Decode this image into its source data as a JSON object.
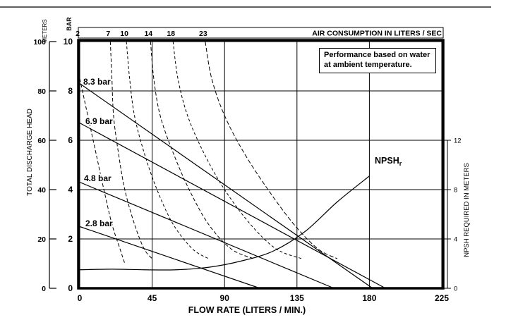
{
  "chart_data": {
    "type": "line",
    "title": "AIR CONSUMPTION IN LITERS / SEC",
    "xlabel": "FLOW RATE (LITERS / MIN.)",
    "ylabel_left_outer": "TOTAL DISCHARGE HEAD",
    "y_unit_outer": "METERS",
    "y_unit_inner": "BAR",
    "ylabel_right": "NPSH REQUIRED IN METERS",
    "annotation": "Performance based on water at ambient temperature.",
    "xlim": [
      0,
      225
    ],
    "ylim_bar": [
      0,
      10
    ],
    "x_ticks": [
      "0",
      "45",
      "90",
      "135",
      "180",
      "225"
    ],
    "y_ticks_bar": [
      "0",
      "2",
      "4",
      "6",
      "8",
      "10"
    ],
    "y_ticks_meters": [
      "0",
      "20",
      "40",
      "60",
      "80",
      "100"
    ],
    "y_ticks_npsh": [
      "0",
      "4",
      "8",
      "12"
    ],
    "air_ticks": [
      "2",
      "7",
      "10",
      "14",
      "18",
      "23"
    ],
    "grid": true,
    "pressure_curves": [
      {
        "name": "8.3 bar",
        "x": [
          0,
          182
        ],
        "y": [
          8.3,
          0
        ]
      },
      {
        "name": "6.9 bar",
        "x": [
          0,
          190
        ],
        "y": [
          6.7,
          0
        ]
      },
      {
        "name": "4.8 bar",
        "x": [
          0,
          158
        ],
        "y": [
          4.3,
          0
        ]
      },
      {
        "name": "2.8 bar",
        "x": [
          0,
          112
        ],
        "y": [
          2.5,
          0
        ]
      }
    ],
    "npsh_curve": {
      "name": "NPSHr",
      "x": [
        0,
        20,
        40,
        60,
        80,
        100,
        120,
        140,
        160,
        180
      ],
      "npsh_m": [
        1.5,
        1.55,
        1.5,
        1.5,
        1.7,
        2.2,
        3.0,
        4.6,
        7.0,
        9.1
      ]
    },
    "air_curves": [
      {
        "name": "2",
        "x": [
          0,
          5,
          10,
          15,
          20,
          25,
          28
        ],
        "y": [
          8.5,
          7.0,
          5.5,
          4.0,
          2.6,
          1.6,
          1.0
        ]
      },
      {
        "name": "7",
        "x": [
          19,
          20,
          21,
          24,
          28,
          34,
          40,
          45
        ],
        "y": [
          10,
          8.5,
          7.0,
          5.5,
          4.0,
          2.6,
          1.6,
          1.2
        ]
      },
      {
        "name": "10",
        "x": [
          29,
          31,
          34,
          40,
          48,
          58,
          70,
          80
        ],
        "y": [
          10,
          8.5,
          7.0,
          5.5,
          4.0,
          2.6,
          1.6,
          1.2
        ]
      },
      {
        "name": "14",
        "x": [
          44,
          46,
          50,
          58,
          68,
          80,
          94,
          108
        ],
        "y": [
          10,
          8.5,
          7.0,
          5.5,
          4.0,
          2.6,
          1.6,
          1.2
        ]
      },
      {
        "name": "18",
        "x": [
          58,
          61,
          67,
          77,
          90,
          106,
          122,
          138
        ],
        "y": [
          10,
          8.5,
          7.0,
          5.5,
          4.0,
          2.6,
          1.6,
          1.2
        ]
      },
      {
        "name": "23",
        "x": [
          78,
          82,
          90,
          102,
          117,
          133,
          148,
          160
        ],
        "y": [
          10,
          8.5,
          7.0,
          5.5,
          4.0,
          2.6,
          1.6,
          1.2
        ]
      }
    ]
  }
}
